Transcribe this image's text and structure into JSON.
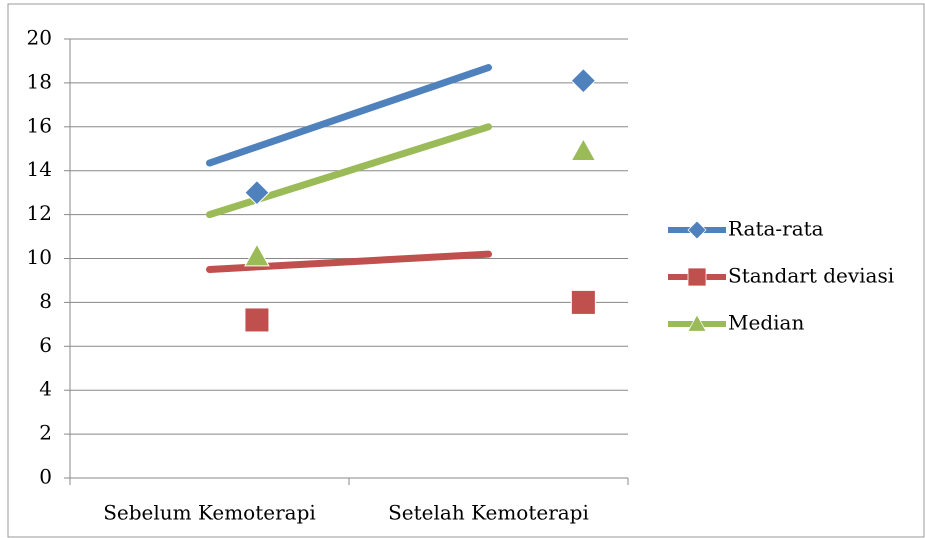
{
  "chart_data": {
    "type": "line",
    "categories": [
      "Sebelum Kemoterapi",
      "Setelah Kemoterapi"
    ],
    "series": [
      {
        "name": "Rata-rata",
        "color": "#4f81bd",
        "marker": "diamond",
        "values": [
          13.0,
          18.1
        ],
        "trend": [
          14.35,
          18.7
        ]
      },
      {
        "name": "Standart deviasi",
        "color": "#c0504d",
        "marker": "square",
        "values": [
          7.2,
          8.0
        ],
        "trend": [
          9.5,
          10.2
        ]
      },
      {
        "name": "Median",
        "color": "#9bbb59",
        "marker": "triangle",
        "values": [
          10.1,
          14.9
        ],
        "trend": [
          12.0,
          16.0
        ]
      }
    ],
    "ylim": [
      0,
      20
    ],
    "yticks": [
      0,
      2,
      4,
      6,
      8,
      10,
      12,
      14,
      16,
      18,
      20
    ],
    "grid": true,
    "legend": "right"
  }
}
